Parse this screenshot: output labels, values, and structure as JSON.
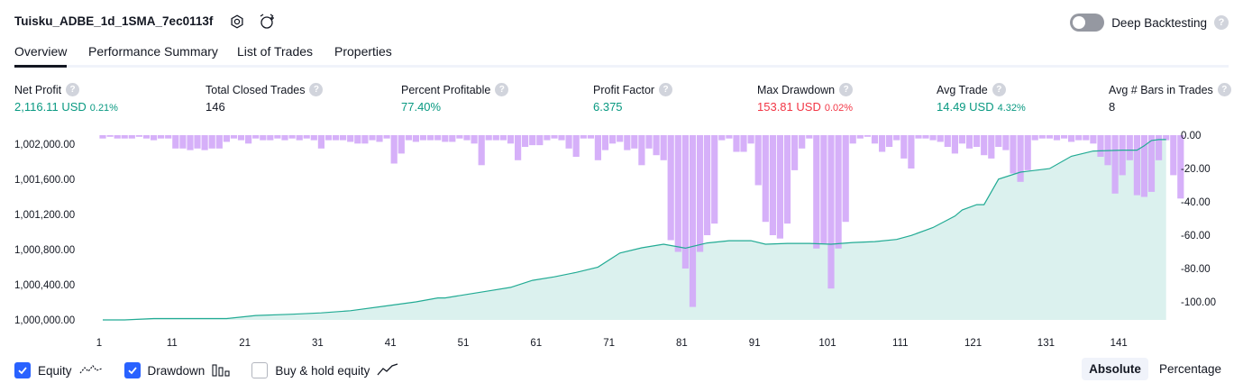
{
  "header": {
    "strategy_name": "Tuisku_ADBE_1d_1SMA_7ec0113f",
    "settings_icon": "gear-icon",
    "add_alert_icon": "alarm-plus-icon",
    "deep_backtesting_label": "Deep Backtesting",
    "deep_backtesting_enabled": false,
    "help_glyph": "?"
  },
  "tabs": [
    {
      "label": "Overview",
      "active": true
    },
    {
      "label": "Performance Summary",
      "active": false
    },
    {
      "label": "List of Trades",
      "active": false
    },
    {
      "label": "Properties",
      "active": false
    }
  ],
  "metrics": [
    {
      "label": "Net Profit",
      "value": "2,116.11",
      "unit": "USD",
      "pct": "0.21%",
      "color": "#089981"
    },
    {
      "label": "Total Closed Trades",
      "value": "146",
      "unit": "",
      "pct": "",
      "color": "#131722"
    },
    {
      "label": "Percent Profitable",
      "value": "77.40%",
      "unit": "",
      "pct": "",
      "color": "#089981"
    },
    {
      "label": "Profit Factor",
      "value": "6.375",
      "unit": "",
      "pct": "",
      "color": "#089981"
    },
    {
      "label": "Max Drawdown",
      "value": "153.81",
      "unit": "USD",
      "pct": "0.02%",
      "color": "#f23645"
    },
    {
      "label": "Avg Trade",
      "value": "14.49",
      "unit": "USD",
      "pct": "4.32%",
      "color": "#089981"
    },
    {
      "label": "Avg # Bars in Trades",
      "value": "8",
      "unit": "",
      "pct": "",
      "color": "#131722"
    }
  ],
  "chart_data": {
    "type": "area",
    "x_ticks": [
      "1",
      "11",
      "21",
      "31",
      "41",
      "51",
      "61",
      "71",
      "81",
      "91",
      "101",
      "111",
      "121",
      "131",
      "141"
    ],
    "y_left_ticks": [
      "1,000,000.00",
      "1,000,400.00",
      "1,000,800.00",
      "1,001,200.00",
      "1,001,600.00",
      "1,002,000.00"
    ],
    "y_right_ticks": [
      "0.00",
      "-20.00",
      "-40.00",
      "-60.00",
      "-80.00",
      "-100.00"
    ],
    "y_left_range": [
      1000000,
      1002100
    ],
    "y_right_range": [
      0,
      -110
    ],
    "equity_color": "#22ab94",
    "drawdown_color": "#d1a7f8",
    "series": [
      {
        "name": "Equity",
        "x": [
          1,
          4,
          8,
          13,
          18,
          22,
          27,
          31,
          35,
          40,
          44,
          47,
          48,
          51,
          54,
          57,
          60,
          63,
          66,
          69,
          72,
          75,
          78,
          81,
          84,
          87,
          90,
          92,
          95,
          98,
          101,
          104,
          107,
          110,
          112,
          115,
          118,
          119,
          121,
          122,
          124,
          127,
          131,
          134,
          137,
          141,
          143,
          144,
          145,
          146,
          147
        ],
        "values": [
          1000000,
          1000000,
          1000015,
          1000015,
          1000015,
          1000050,
          1000065,
          1000080,
          1000105,
          1000160,
          1000205,
          1000250,
          1000250,
          1000290,
          1000330,
          1000370,
          1000450,
          1000490,
          1000540,
          1000600,
          1000760,
          1000820,
          1000860,
          1000815,
          1000875,
          1000900,
          1000900,
          1000860,
          1000870,
          1000870,
          1000860,
          1000880,
          1000890,
          1000915,
          1000960,
          1001050,
          1001180,
          1001250,
          1001310,
          1001310,
          1001600,
          1001680,
          1001720,
          1001860,
          1001920,
          1001930,
          1001930,
          1001980,
          1002040,
          1002050,
          1002050
        ]
      },
      {
        "name": "Drawdown",
        "values": [
          -2,
          -1,
          -2,
          -2,
          -2,
          -1,
          -2,
          -3,
          -2,
          -2,
          -8,
          -8,
          -9,
          -8,
          -9,
          -8,
          -8,
          -4,
          -2,
          -3,
          -5,
          -2,
          -3,
          -3,
          -2,
          -3,
          -2,
          -3,
          -2,
          -3,
          -8,
          -3,
          -3,
          -3,
          -4,
          -5,
          -5,
          -3,
          -4,
          -2,
          -17,
          -11,
          -3,
          -4,
          -3,
          -3,
          -3,
          -4,
          -4,
          -2,
          -3,
          -5,
          -18,
          -3,
          -3,
          -3,
          -5,
          -15,
          -7,
          -6,
          -6,
          -3,
          -2,
          -3,
          -8,
          -13,
          -2,
          -2,
          -15,
          -9,
          -5,
          -4,
          -9,
          -8,
          -18,
          -8,
          -12,
          -15,
          -63,
          -70,
          -80,
          -103,
          -70,
          -60,
          -53,
          -3,
          -2,
          -10,
          -10,
          -5,
          -30,
          -52,
          -60,
          -62,
          -53,
          -21,
          -8,
          -2,
          -68,
          -65,
          -92,
          -68,
          -52,
          -5,
          -2,
          -1,
          -5,
          -10,
          -7,
          -3,
          -14,
          -20,
          -2,
          -2,
          -3,
          -4,
          -7,
          -11,
          -5,
          -8,
          -7,
          -12,
          -14,
          -7,
          -9,
          -23,
          -28,
          -21,
          -3,
          -2,
          -2,
          -3,
          -2,
          -4,
          -3,
          -3,
          -5,
          -13,
          -18,
          -35,
          -24,
          -15,
          -36,
          -37,
          -34,
          -15,
          -3,
          -24,
          -38
        ]
      }
    ]
  },
  "legend": [
    {
      "label": "Equity",
      "checked": true,
      "icon": "equity-line-icon"
    },
    {
      "label": "Drawdown",
      "checked": true,
      "icon": "drawdown-bars-icon"
    },
    {
      "label": "Buy & hold equity",
      "checked": false,
      "icon": "buy-hold-line-icon"
    }
  ],
  "mode": {
    "absolute_label": "Absolute",
    "percentage_label": "Percentage",
    "active": "Absolute"
  }
}
